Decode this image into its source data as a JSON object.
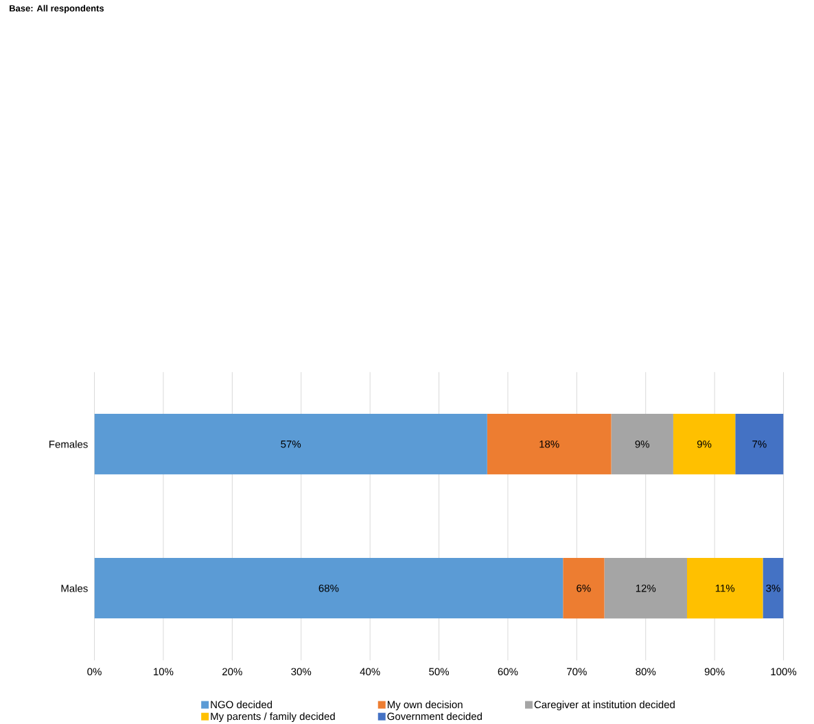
{
  "chart_data": {
    "type": "bar",
    "orientation": "horizontal",
    "stacked": true,
    "annotations": [
      "Base: All respondents"
    ],
    "categories": [
      "Females",
      "Males"
    ],
    "series": [
      {
        "name": "NGO decided",
        "color": "#5b9bd5",
        "values": [
          57,
          68
        ],
        "value_labels": [
          "57%",
          "68%"
        ]
      },
      {
        "name": "My own decision",
        "color": "#ed7d31",
        "values": [
          18,
          6
        ],
        "value_labels": [
          "18%",
          "6%"
        ]
      },
      {
        "name": "Caregiver at institution decided",
        "color": "#a5a5a5",
        "values": [
          9,
          12
        ],
        "value_labels": [
          "9%",
          "12%"
        ]
      },
      {
        "name": "My parents / family decided",
        "color": "#ffc000",
        "values": [
          9,
          11
        ],
        "value_labels": [
          "9%",
          "11%"
        ]
      },
      {
        "name": "Government decided",
        "color": "#4472c4",
        "values": [
          7,
          3
        ],
        "value_labels": [
          "7%",
          "3%"
        ]
      }
    ],
    "xlim": [
      0,
      100
    ],
    "xticks": [
      {
        "value": 0,
        "label": "0%"
      },
      {
        "value": 10,
        "label": "10%"
      },
      {
        "value": 20,
        "label": "20%"
      },
      {
        "value": 30,
        "label": "30%"
      },
      {
        "value": 40,
        "label": "40%"
      },
      {
        "value": 50,
        "label": "50%"
      },
      {
        "value": 60,
        "label": "60%"
      },
      {
        "value": 70,
        "label": "70%"
      },
      {
        "value": 80,
        "label": "80%"
      },
      {
        "value": 90,
        "label": "90%"
      },
      {
        "value": 100,
        "label": "100%"
      }
    ],
    "grid": "x",
    "legend": "bottom"
  }
}
